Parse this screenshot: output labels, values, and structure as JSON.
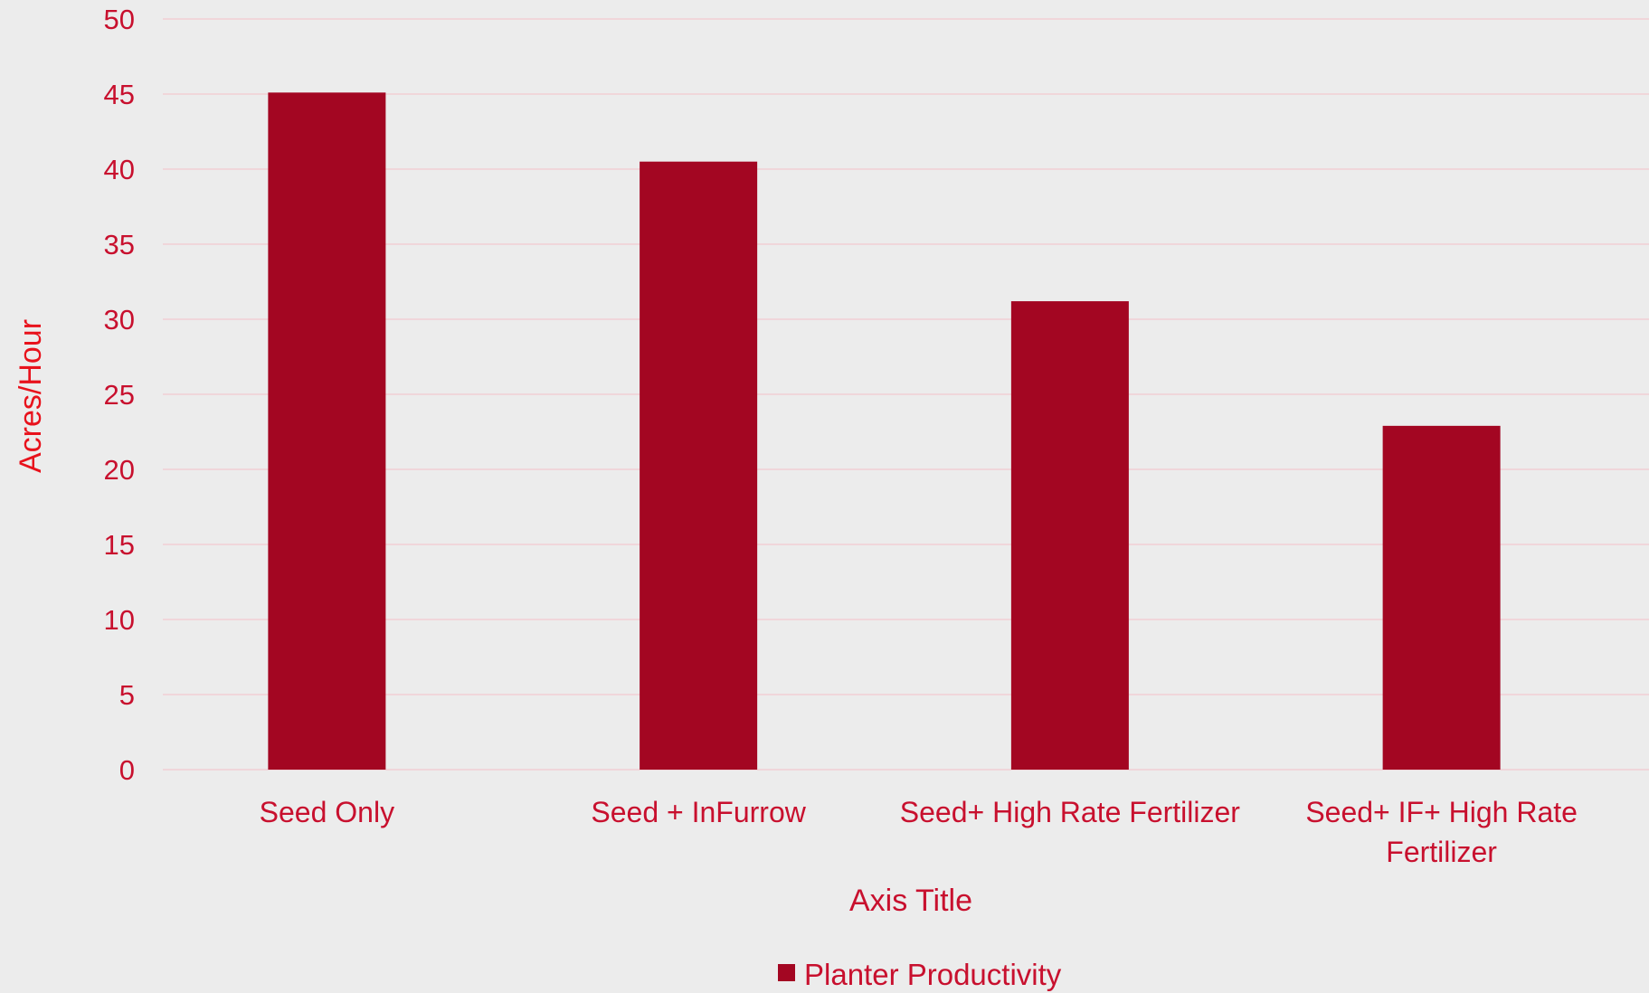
{
  "chart_data": {
    "type": "bar",
    "categories": [
      [
        "Seed Only"
      ],
      [
        "Seed + InFurrow"
      ],
      [
        "Seed+ High Rate Fertilizer"
      ],
      [
        "Seed+ IF+ High Rate",
        "Fertilizer"
      ]
    ],
    "series": [
      {
        "name": "Planter Productivity",
        "values": [
          45.1,
          40.5,
          31.2,
          22.9
        ]
      }
    ],
    "xlabel": "Axis Title",
    "ylabel": "Acres/Hour",
    "ylim": [
      0,
      50
    ],
    "yticks": [
      0,
      5,
      10,
      15,
      20,
      25,
      30,
      35,
      40,
      45,
      50
    ],
    "grid": true,
    "legend": "bottom-center",
    "colors": {
      "bar": "#a30622",
      "text": "#c8102e",
      "axis_title": "#e8121c",
      "grid": "#f2cfd4",
      "background": "#ececec"
    }
  }
}
